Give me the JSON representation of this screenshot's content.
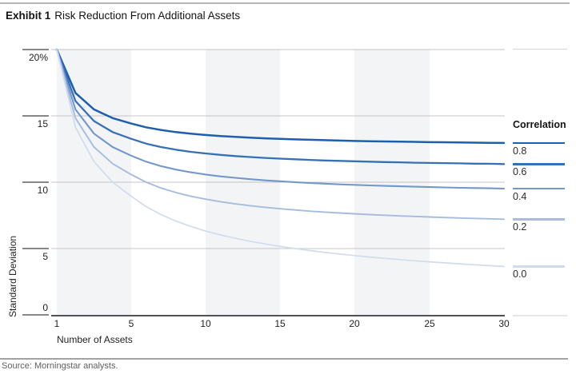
{
  "header": {
    "exhibit": "Exhibit 1",
    "title": "Risk Reduction From Additional Assets"
  },
  "footer": {
    "source": "Source: Morningstar analysts."
  },
  "chart_data": {
    "type": "line",
    "title": "Exhibit 1 Risk Reduction From Additional Assets",
    "xlabel": "Number of Assets",
    "ylabel": "Standard Deviation",
    "legend_title": "Correlation",
    "legend_position": "right",
    "xlim": [
      1,
      30
    ],
    "ylim": [
      0,
      20
    ],
    "x_ticks": [
      1,
      5,
      10,
      15,
      20,
      25,
      30
    ],
    "x_tick_labels": [
      "1",
      "5",
      "10",
      "15",
      "20",
      "25",
      "30"
    ],
    "y_ticks": [
      0,
      5,
      10,
      15,
      20
    ],
    "y_tick_labels": [
      "0",
      "5",
      "10",
      "15",
      "20%"
    ],
    "shaded_x_bands": [
      [
        1,
        5
      ],
      [
        10,
        15
      ],
      [
        20,
        25
      ]
    ],
    "grid": "horizontal",
    "x": [
      1,
      2,
      3,
      4,
      5,
      6,
      7,
      8,
      9,
      10,
      11,
      12,
      13,
      14,
      15,
      16,
      17,
      18,
      19,
      20,
      21,
      22,
      23,
      24,
      25,
      26,
      27,
      28,
      29,
      30
    ],
    "series": [
      {
        "name": "0.8",
        "color": "#1d5fae",
        "values": [
          20,
          16.73,
          15.49,
          14.83,
          14.42,
          14.14,
          13.94,
          13.78,
          13.66,
          13.56,
          13.48,
          13.42,
          13.36,
          13.31,
          13.27,
          13.23,
          13.2,
          13.17,
          13.14,
          13.11,
          13.09,
          13.07,
          13.06,
          13.04,
          13.02,
          13.01,
          13.0,
          12.98,
          12.97,
          12.96
        ]
      },
      {
        "name": "0.6",
        "color": "#3671b8",
        "values": [
          20,
          16.12,
          14.61,
          13.78,
          13.27,
          12.91,
          12.65,
          12.45,
          12.29,
          12.17,
          12.06,
          11.97,
          11.9,
          11.83,
          11.78,
          11.73,
          11.68,
          11.64,
          11.61,
          11.58,
          11.55,
          11.52,
          11.5,
          11.47,
          11.45,
          11.44,
          11.42,
          11.4,
          11.39,
          11.37
        ]
      },
      {
        "name": "0.4",
        "color": "#7397cc",
        "values": [
          20,
          15.49,
          13.66,
          12.65,
          12.0,
          11.55,
          11.21,
          10.95,
          10.75,
          10.58,
          10.44,
          10.33,
          10.23,
          10.14,
          10.07,
          10.0,
          9.94,
          9.89,
          9.84,
          9.8,
          9.76,
          9.72,
          9.69,
          9.66,
          9.63,
          9.61,
          9.58,
          9.56,
          9.54,
          9.52
        ]
      },
      {
        "name": "0.2",
        "color": "#a6bcdf",
        "values": [
          20,
          14.83,
          12.65,
          11.4,
          10.58,
          10.0,
          9.56,
          9.22,
          8.94,
          8.72,
          8.53,
          8.37,
          8.23,
          8.11,
          8.0,
          7.91,
          7.82,
          7.75,
          7.68,
          7.62,
          7.56,
          7.51,
          7.46,
          7.42,
          7.38,
          7.34,
          7.3,
          7.27,
          7.24,
          7.21
        ]
      },
      {
        "name": "0.0",
        "color": "#d0dcee",
        "values": [
          20,
          14.14,
          11.55,
          10.0,
          8.94,
          8.16,
          7.56,
          7.07,
          6.67,
          6.32,
          6.03,
          5.77,
          5.55,
          5.35,
          5.16,
          5.0,
          4.85,
          4.71,
          4.59,
          4.47,
          4.36,
          4.26,
          4.17,
          4.08,
          4.0,
          3.92,
          3.85,
          3.78,
          3.71,
          3.65
        ]
      }
    ],
    "colors": {
      "band": "#f3f4f6",
      "gridline": "#c4c5c7",
      "axis_line": "#515255",
      "tick_mark": "#404144",
      "legend_extension_line": "#d8d9db"
    }
  }
}
